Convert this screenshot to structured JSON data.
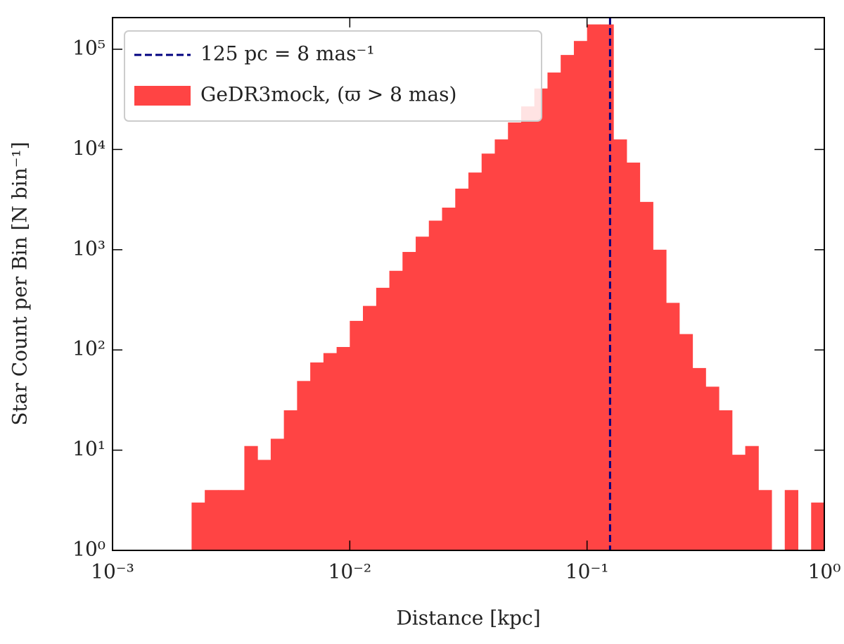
{
  "chart_data": {
    "type": "histogram",
    "xlabel": "Distance [kpc]",
    "ylabel": "Star Count per Bin [N bin⁻¹]",
    "xscale": "log",
    "yscale": "log",
    "xlim": [
      0.001,
      1
    ],
    "ylim": [
      1,
      207000
    ],
    "xticks": [
      {
        "value": 0.001,
        "label": "10⁻³"
      },
      {
        "value": 0.01,
        "label": "10⁻²"
      },
      {
        "value": 0.1,
        "label": "10⁻¹"
      },
      {
        "value": 1,
        "label": "10⁰"
      }
    ],
    "yticks": [
      {
        "value": 1,
        "label": "10⁰"
      },
      {
        "value": 10,
        "label": "10¹"
      },
      {
        "value": 100,
        "label": "10²"
      },
      {
        "value": 1000,
        "label": "10³"
      },
      {
        "value": 10000,
        "label": "10⁴"
      },
      {
        "value": 100000,
        "label": "10⁵"
      }
    ],
    "legend": "upper left",
    "bins": [
      0.002154,
      0.002448,
      0.002783,
      0.003162,
      0.003594,
      0.004084,
      0.004642,
      0.005275,
      0.005995,
      0.006813,
      0.007743,
      0.0088,
      0.01,
      0.01136,
      0.01292,
      0.01468,
      0.01668,
      0.01896,
      0.02154,
      0.02448,
      0.02783,
      0.03162,
      0.03594,
      0.04084,
      0.04642,
      0.05275,
      0.05995,
      0.06813,
      0.07743,
      0.088,
      0.1,
      0.1136,
      0.1292,
      0.1468,
      0.1668,
      0.1896,
      0.2154,
      0.2448,
      0.2783,
      0.3162,
      0.3594,
      0.4084,
      0.4642,
      0.5275,
      0.5995,
      0.6813,
      0.7743,
      0.88,
      1.0
    ],
    "series": [
      {
        "name": "GeDR3mock, (ϖ > 8 mas)",
        "color": "#ff4444",
        "values": [
          3,
          4,
          4,
          4,
          11,
          8,
          13,
          25,
          49,
          75,
          93,
          107,
          195,
          275,
          417,
          616,
          950,
          1350,
          1950,
          2630,
          4070,
          5890,
          9100,
          12600,
          18600,
          26900,
          40600,
          58600,
          87700,
          121000,
          177000,
          177000,
          12600,
          7400,
          3000,
          1000,
          295,
          144,
          66,
          43,
          25,
          9,
          11,
          4,
          0,
          4,
          0,
          3
        ]
      }
    ],
    "vline": {
      "name": "125 pc = 8 mas⁻¹",
      "x": 0.125,
      "color": "#00007f"
    }
  }
}
